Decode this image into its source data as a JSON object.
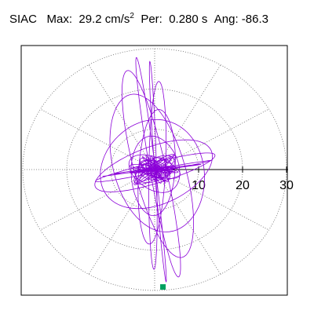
{
  "header": {
    "station": "SIAC",
    "max_label": "Max:",
    "max_value": "29.2 cm/s",
    "max_unit_exp": "2",
    "per_label": "Per:",
    "per_value": "0.280 s",
    "ang_label": "Ang:",
    "ang_value": "-86.3"
  },
  "chart_data": {
    "type": "scatter",
    "subtype": "polar-particle-motion",
    "title": "SIAC",
    "max_value": 29.2,
    "max_unit": "cm/s²",
    "period_s": 0.28,
    "angle_deg": -86.3,
    "rlim": [
      0,
      30
    ],
    "ring_radii": [
      10,
      20,
      30
    ],
    "radial_tick_labels": [
      "10",
      "20",
      "30"
    ],
    "spoke_angles_deg": [
      0,
      30,
      60,
      90,
      120,
      150,
      180,
      210,
      240,
      270,
      300,
      330
    ],
    "grid": true,
    "trace_color": "#8b00d8",
    "peak_marker_color": "#00a060",
    "peak_point": {
      "angle_deg": -86.3,
      "r": 29.2
    }
  }
}
